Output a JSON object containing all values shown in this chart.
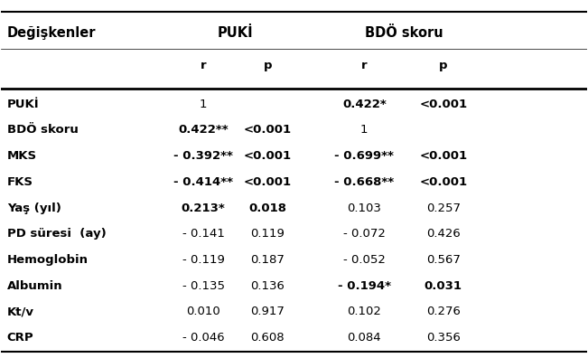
{
  "col_header_row1": [
    "Değişkenler",
    "PUKİ",
    "",
    "BDÖ skoru",
    ""
  ],
  "col_header_row2": [
    "",
    "r",
    "p",
    "r",
    "p"
  ],
  "rows": [
    {
      "label": "PUKİ",
      "puki_r": "1",
      "puki_p": "",
      "bdo_r": "0.422*",
      "bdo_p": "<0.001",
      "bold_pr": false,
      "bold_pp": false,
      "bold_br": true,
      "bold_bp": true
    },
    {
      "label": "BDÖ skoru",
      "puki_r": "0.422**",
      "puki_p": "<0.001",
      "bdo_r": "1",
      "bdo_p": "",
      "bold_pr": true,
      "bold_pp": true,
      "bold_br": false,
      "bold_bp": false
    },
    {
      "label": "MKS",
      "puki_r": "- 0.392**",
      "puki_p": "<0.001",
      "bdo_r": "- 0.699**",
      "bdo_p": "<0.001",
      "bold_pr": true,
      "bold_pp": true,
      "bold_br": true,
      "bold_bp": true
    },
    {
      "label": "FKS",
      "puki_r": "- 0.414**",
      "puki_p": "<0.001",
      "bdo_r": "- 0.668**",
      "bdo_p": "<0.001",
      "bold_pr": true,
      "bold_pp": true,
      "bold_br": true,
      "bold_bp": true
    },
    {
      "label": "Yaş (yıl)",
      "puki_r": "0.213*",
      "puki_p": "0.018",
      "bdo_r": "0.103",
      "bdo_p": "0.257",
      "bold_pr": true,
      "bold_pp": true,
      "bold_br": false,
      "bold_bp": false
    },
    {
      "label": "PD süresi  (ay)",
      "puki_r": "- 0.141",
      "puki_p": "0.119",
      "bdo_r": "- 0.072",
      "bdo_p": "0.426",
      "bold_pr": false,
      "bold_pp": false,
      "bold_br": false,
      "bold_bp": false
    },
    {
      "label": "Hemoglobin",
      "puki_r": "- 0.119",
      "puki_p": "0.187",
      "bdo_r": "- 0.052",
      "bdo_p": "0.567",
      "bold_pr": false,
      "bold_pp": false,
      "bold_br": false,
      "bold_bp": false
    },
    {
      "label": "Albumin",
      "puki_r": "- 0.135",
      "puki_p": "0.136",
      "bdo_r": "- 0.194*",
      "bdo_p": "0.031",
      "bold_pr": false,
      "bold_pp": false,
      "bold_br": true,
      "bold_bp": true
    },
    {
      "label": "Kt/v",
      "puki_r": "0.010",
      "puki_p": "0.917",
      "bdo_r": "0.102",
      "bdo_p": "0.276",
      "bold_pr": false,
      "bold_pp": false,
      "bold_br": false,
      "bold_bp": false
    },
    {
      "label": "CRP",
      "puki_r": "- 0.046",
      "puki_p": "0.608",
      "bdo_r": "0.084",
      "bdo_p": "0.356",
      "bold_pr": false,
      "bold_pp": false,
      "bold_br": false,
      "bold_bp": false
    }
  ],
  "bg_color": "#ffffff",
  "text_color": "#000000",
  "font_size": 9.5,
  "header_font_size": 10.5
}
